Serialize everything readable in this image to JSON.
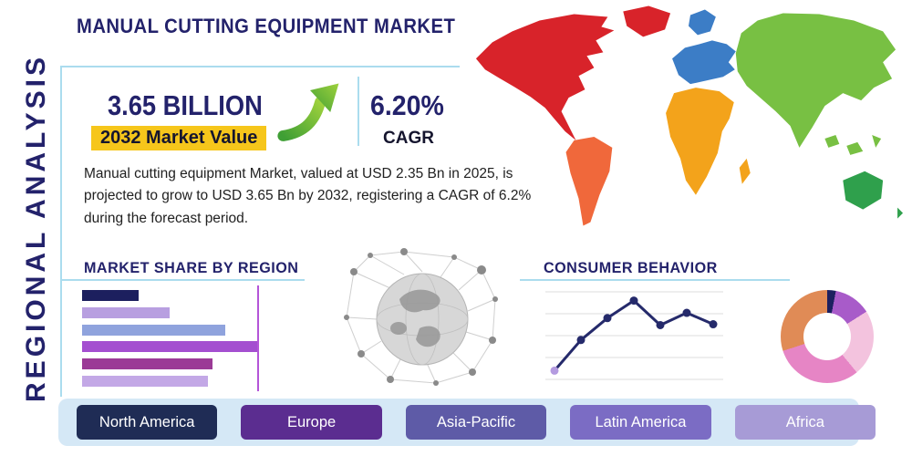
{
  "header": {
    "title": "MANUAL CUTTING EQUIPMENT MARKET"
  },
  "side_label": "REGIONAL ANALYSIS",
  "stats": {
    "market_value": "3.65 BILLION",
    "market_value_caption": "2032 Market Value",
    "cagr_value": "6.20%",
    "cagr_caption": "CAGR"
  },
  "description": "Manual cutting equipment Market, valued at USD 2.35 Bn in 2025, is projected to grow to USD 3.65 Bn by 2032, registering a CAGR of 6.2% during the forecast period.",
  "sections": {
    "market_share_title": "MARKET SHARE BY REGION",
    "consumer_behavior_title": "CONSUMER BEHAVIOR"
  },
  "region_buttons": [
    {
      "label": "North America",
      "color": "#1f2c55"
    },
    {
      "label": "Europe",
      "color": "#5b2d90"
    },
    {
      "label": "Asia-Pacific",
      "color": "#5e5ba7"
    },
    {
      "label": "Latin America",
      "color": "#7b6cc4"
    },
    {
      "label": "Africa",
      "color": "#a79bd6"
    }
  ],
  "map_colors": {
    "north_america": "#d8232a",
    "greenland": "#d8232a",
    "south_america": "#f0683b",
    "europe": "#3c7dc6",
    "africa": "#f3a31b",
    "asia": "#78c043",
    "australia": "#2fa04c"
  },
  "chart_data": [
    {
      "type": "bar",
      "title": "MARKET SHARE BY REGION",
      "orientation": "horizontal",
      "note": "unlabeled bars, values estimated as relative share (max bar = 78 of 100 chart width)",
      "values": [
        25,
        39,
        64,
        78,
        58,
        56
      ],
      "colors": [
        "#1c1f5e",
        "#b89fe0",
        "#8fa3dd",
        "#a44fd0",
        "#9b3a96",
        "#c3a8e6"
      ],
      "marker_line_position": 78,
      "marker_line_color": "#b455d8"
    },
    {
      "type": "line",
      "title": "CONSUMER BEHAVIOR",
      "x": [
        1,
        2,
        3,
        4,
        5,
        6,
        7
      ],
      "values": [
        10,
        45,
        70,
        90,
        62,
        76,
        63
      ],
      "ylim": [
        0,
        100
      ],
      "grid": true,
      "line_color": "#252a6b",
      "highlight_first_point_color": "#b49be0"
    },
    {
      "type": "pie",
      "title": "regional share donut",
      "donut": true,
      "slices": [
        {
          "label": "navy",
          "value": 3,
          "color": "#1c2060"
        },
        {
          "label": "violet",
          "value": 13,
          "color": "#a85bc9"
        },
        {
          "label": "light-pink",
          "value": 23,
          "color": "#f3c3de"
        },
        {
          "label": "pink",
          "value": 31,
          "color": "#e685c5"
        },
        {
          "label": "orange",
          "value": 30,
          "color": "#e08b56"
        }
      ]
    }
  ]
}
